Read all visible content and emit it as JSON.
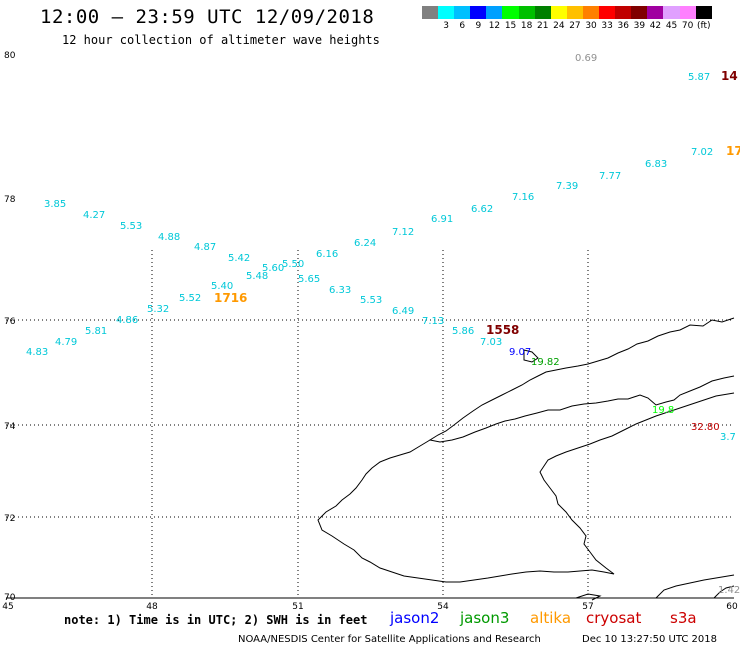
{
  "header": {
    "title": "12:00 – 23:59 UTC 12/09/2018",
    "subtitle": "12 hour collection of altimeter wave heights"
  },
  "legend": {
    "unit_label": "(ft)",
    "colors": [
      "#808080",
      "#00ffff",
      "#00c0ff",
      "#0000ff",
      "#00a0ff",
      "#00ff00",
      "#00c000",
      "#008000",
      "#ffff00",
      "#ffc000",
      "#ff8000",
      "#ff0000",
      "#c00000",
      "#800000",
      "#a000a0",
      "#e0a0ff",
      "#ff80ff",
      "#000000"
    ],
    "labels": [
      "3",
      "6",
      "9",
      "12",
      "15",
      "18",
      "21",
      "24",
      "27",
      "30",
      "33",
      "36",
      "39",
      "42",
      "45",
      "70"
    ]
  },
  "axes": {
    "lat_labels": [
      "80",
      "78",
      "76",
      "74",
      "72",
      "70"
    ],
    "lon_labels": [
      "45",
      "48",
      "51",
      "54",
      "57",
      "60"
    ]
  },
  "observations": [
    {
      "text": "0.69",
      "color": "#909090"
    },
    {
      "text": "5.87",
      "color": "#00c8d8"
    },
    {
      "text": "14",
      "color": "#800000"
    },
    {
      "text": "7.02",
      "color": "#00c8d8"
    },
    {
      "text": "17",
      "color": "#ff9900"
    },
    {
      "text": "6.83",
      "color": "#00c8d8"
    },
    {
      "text": "7.77",
      "color": "#00c8d8"
    },
    {
      "text": "7.39",
      "color": "#00c8d8"
    },
    {
      "text": "7.16",
      "color": "#00c8d8"
    },
    {
      "text": "6.62",
      "color": "#00c8d8"
    },
    {
      "text": "6.91",
      "color": "#00c8d8"
    },
    {
      "text": "7.12",
      "color": "#00c8d8"
    },
    {
      "text": "6.24",
      "color": "#00c8d8"
    },
    {
      "text": "6.16",
      "color": "#00c8d8"
    },
    {
      "text": "3.85",
      "color": "#00c8d8"
    },
    {
      "text": "4.27",
      "color": "#00c8d8"
    },
    {
      "text": "5.53",
      "color": "#00c8d8"
    },
    {
      "text": "4.88",
      "color": "#00c8d8"
    },
    {
      "text": "4.87",
      "color": "#00c8d8"
    },
    {
      "text": "5.42",
      "color": "#00c8d8"
    },
    {
      "text": "5.60",
      "color": "#00c8d8"
    },
    {
      "text": "5.50",
      "color": "#00c8d8"
    },
    {
      "text": "5.48",
      "color": "#00c8d8"
    },
    {
      "text": "5.65",
      "color": "#00c8d8"
    },
    {
      "text": "5.40",
      "color": "#00c8d8"
    },
    {
      "text": "6.33",
      "color": "#00c8d8"
    },
    {
      "text": "5.52",
      "color": "#00c8d8"
    },
    {
      "text": "1716",
      "color": "#ff9900"
    },
    {
      "text": "5.53",
      "color": "#00c8d8"
    },
    {
      "text": "5.32",
      "color": "#00c8d8"
    },
    {
      "text": "6.49",
      "color": "#00c8d8"
    },
    {
      "text": "4.86",
      "color": "#00c8d8"
    },
    {
      "text": "7.13",
      "color": "#00c8d8"
    },
    {
      "text": "5.81",
      "color": "#00c8d8"
    },
    {
      "text": "5.86",
      "color": "#00c8d8"
    },
    {
      "text": "1558",
      "color": "#800000"
    },
    {
      "text": "4.79",
      "color": "#00c8d8"
    },
    {
      "text": "7.03",
      "color": "#00c8d8"
    },
    {
      "text": "4.83",
      "color": "#00c8d8"
    },
    {
      "text": "9.07",
      "color": "#0000ff"
    },
    {
      "text": "19.82",
      "color": "#00a000"
    },
    {
      "text": "19.8",
      "color": "#00ff00"
    },
    {
      "text": "32.80",
      "color": "#c00000"
    },
    {
      "text": "3.7",
      "color": "#00c8d8"
    },
    {
      "text": "1.42",
      "color": "#909090"
    }
  ],
  "footer": {
    "note": "note: 1) Time is in UTC; 2) SWH is in feet",
    "satellites": [
      {
        "name": "jason2",
        "color": "#0000ff"
      },
      {
        "name": "jason3",
        "color": "#009900"
      },
      {
        "name": "altika",
        "color": "#ff9900"
      },
      {
        "name": "cryosat",
        "color": "#cc0000"
      },
      {
        "name": "s3a",
        "color": "#cc0000"
      }
    ],
    "credit": "NOAA/NESDIS Center for Satellite Applications and Research",
    "timestamp": "Dec 10 13:27:50 UTC 2018"
  }
}
